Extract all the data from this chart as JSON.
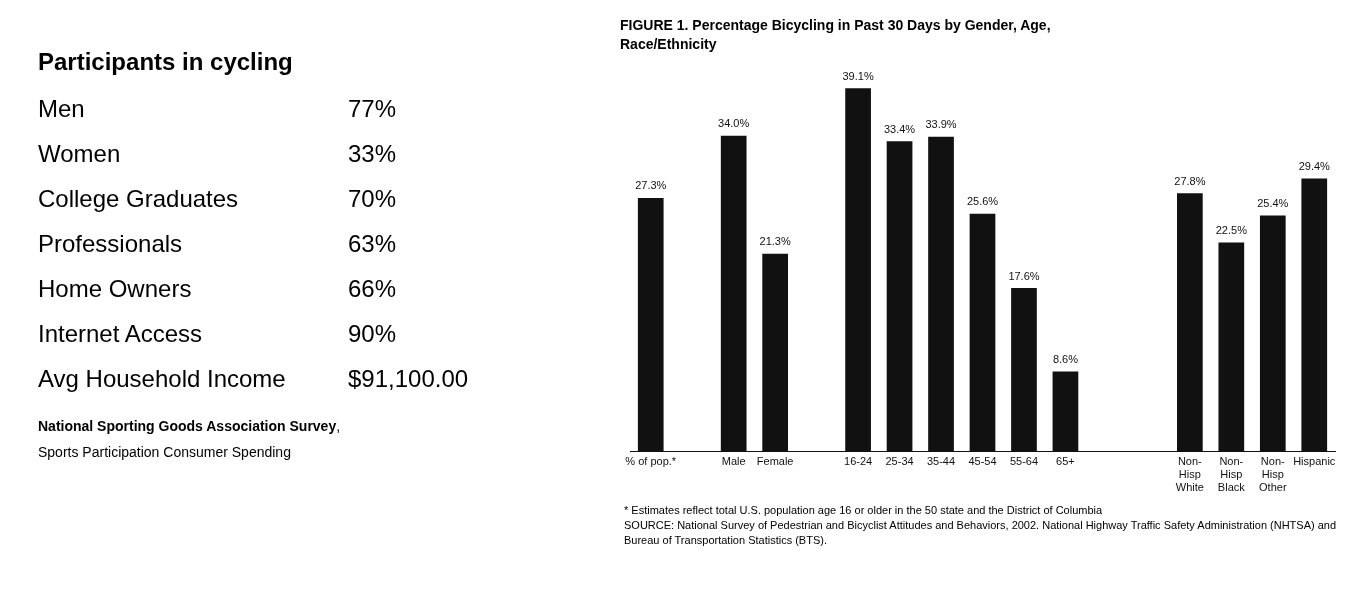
{
  "chart_data": [
    {
      "type": "other",
      "title": "Participants in cycling",
      "categories": [
        "Men",
        "Women",
        "College Graduates",
        "Professionals",
        "Home Owners",
        "Internet Access",
        "Avg Household Income"
      ],
      "value_labels": [
        "77%",
        "33%",
        "70%",
        "63%",
        "66%",
        "90%",
        "$91,100.00"
      ],
      "annotations": [
        "National Sporting Goods Association Survey",
        ", ",
        "Sports Participation Consumer Spending"
      ]
    },
    {
      "type": "bar",
      "title": "FIGURE 1.  Percentage Bicycling in Past 30 Days by Gender, Age, Race/Ethnicity",
      "categories": [
        "% of pop.*",
        null,
        "Male",
        "Female",
        null,
        "16-24",
        "25-34",
        "35-44",
        "45-54",
        "55-64",
        "65+",
        null,
        null,
        "Non-\nHisp\nWhite",
        "Non-\nHisp\nBlack",
        "Non-\nHisp\nOther",
        "Hispanic"
      ],
      "values": [
        27.3,
        null,
        34.0,
        21.3,
        null,
        39.1,
        33.4,
        33.9,
        25.6,
        17.6,
        8.6,
        null,
        null,
        27.8,
        22.5,
        25.4,
        29.4
      ],
      "value_labels": [
        "27.3%",
        null,
        "34.0%",
        "21.3%",
        null,
        "39.1%",
        "33.4%",
        "33.9%",
        "25.6%",
        "17.6%",
        "8.6%",
        null,
        null,
        "27.8%",
        "22.5%",
        "25.4%",
        "29.4%"
      ],
      "color": "#111111",
      "grid": false,
      "legend": false,
      "tick_labels": "x",
      "annotations": [
        "* Estimates reflect total U.S. population age 16 or older in the 50 state and the District of Columbia",
        "SOURCE: National Survey of Pedestrian and Bicyclist Attitudes and Behaviors, 2002. National Highway Traffic Safety Administration (NHTSA) and Bureau of Transportation Statistics (BTS)."
      ]
    }
  ]
}
